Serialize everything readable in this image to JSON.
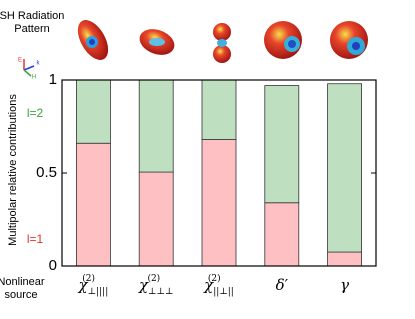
{
  "chart_data": {
    "type": "stacked_bar",
    "title": [
      "SH Radiation",
      "Pattern"
    ],
    "y_label": "Multipolar relative contributions",
    "x_label": [
      "Nonlinear",
      "source"
    ],
    "axes_icon_labels": [
      "E",
      "k",
      "H"
    ],
    "categories": [
      {
        "symbol": "χ",
        "sub": "⊥||||",
        "sup": "(2)"
      },
      {
        "symbol": "χ",
        "sub": "⊥⊥⊥",
        "sup": "(2)"
      },
      {
        "symbol": "χ",
        "sub": "||⊥||",
        "sup": "(2)"
      },
      {
        "symbol": "δ′"
      },
      {
        "symbol": "γ"
      }
    ],
    "series": [
      {
        "name": "l=1",
        "color": "#ffc0c4",
        "label_color": "#e8332e",
        "values": [
          0.66,
          0.505,
          0.68,
          0.34,
          0.075
        ]
      },
      {
        "name": "l=2",
        "color": "#bfe0c0",
        "label_color": "#3aa63a",
        "values": [
          0.34,
          0.495,
          0.32,
          0.63,
          0.905
        ]
      }
    ],
    "ylim": [
      0,
      1
    ],
    "yticks": [
      0,
      0.5,
      1
    ]
  }
}
